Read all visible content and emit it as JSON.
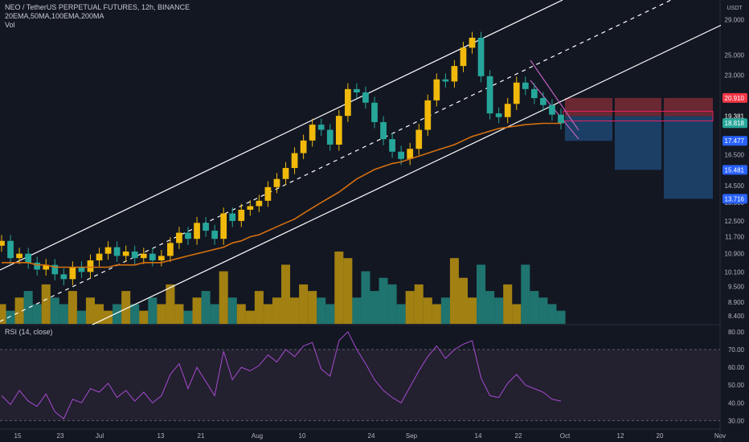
{
  "header": {
    "symbol_line": "NEO / TetherUS PERPETUAL FUTURES, 12h, BINANCE",
    "indicators_line": "20EMA,50MA,100EMA,200MA",
    "volume_label": "Vol"
  },
  "rsi_label": "RSI (14, close)",
  "colors": {
    "background": "#131722",
    "bull": "#f0b90b",
    "bear": "#26a69a",
    "ma": "#d4700f",
    "rsi_line": "#a64bd0",
    "rsi_band": "#23202f",
    "channel": "#ffffff",
    "stop_zone": "#b3363f",
    "target_zone": "#1f4a78"
  },
  "chart_data": [
    {
      "type": "candlestick",
      "title": "NEO / TetherUS PERPETUAL FUTURES, 12h, BINANCE",
      "currency": "USDT",
      "y_scale": "log",
      "ylim": [
        8.1,
        31.5
      ],
      "y_ticks": [
        "8.400",
        "8.900",
        "9.500",
        "10.100",
        "10.900",
        "11.700",
        "12.500",
        "13.500",
        "14.500",
        "16.500",
        "21.000",
        "23.000",
        "25.000",
        "29.000"
      ],
      "x_ticks": [
        "15",
        "23",
        "Jul",
        "13",
        "21",
        "Aug",
        "10",
        "24",
        "Sep",
        "14",
        "22",
        "Oct",
        "12",
        "20",
        "Nov"
      ],
      "price_labels": [
        {
          "label": "20.910",
          "value": 20.91,
          "color": "#f23645"
        },
        {
          "label": "19.381",
          "value": 19.381,
          "color": "#131722"
        },
        {
          "label": "18.818",
          "value": 18.818,
          "color": "#26a69a"
        },
        {
          "label": "17.477",
          "value": 17.477,
          "color": "#2962ff"
        },
        {
          "label": "15.481",
          "value": 15.481,
          "color": "#2962ff"
        },
        {
          "label": "13.716",
          "value": 13.716,
          "color": "#2962ff"
        }
      ],
      "series": [
        {
          "name": "Close",
          "values": [
            11.5,
            10.7,
            10.9,
            10.5,
            10.2,
            10.4,
            10.0,
            9.8,
            10.3,
            10.1,
            10.6,
            10.9,
            11.2,
            10.8,
            11.0,
            10.7,
            10.9,
            10.6,
            10.8,
            11.4,
            11.9,
            11.6,
            12.4,
            12.0,
            11.6,
            12.9,
            12.5,
            13.1,
            13.3,
            13.6,
            14.4,
            14.9,
            15.6,
            16.6,
            17.5,
            18.7,
            18.3,
            17.2,
            19.4,
            21.7,
            21.4,
            20.5,
            18.9,
            17.6,
            16.7,
            16.2,
            16.9,
            18.3,
            20.7,
            22.6,
            22.4,
            23.9,
            25.8,
            26.9,
            22.9,
            19.6,
            19.3,
            20.4,
            22.3,
            21.7,
            20.9,
            20.3,
            19.5,
            18.8
          ]
        },
        {
          "name": "MA",
          "values": [
            10.5,
            10.5,
            10.5,
            10.5,
            10.4,
            10.4,
            10.3,
            10.3,
            10.3,
            10.3,
            10.3,
            10.3,
            10.3,
            10.4,
            10.4,
            10.4,
            10.5,
            10.5,
            10.5,
            10.6,
            10.7,
            10.8,
            10.9,
            11.0,
            11.1,
            11.2,
            11.4,
            11.5,
            11.7,
            11.8,
            12.0,
            12.2,
            12.4,
            12.6,
            12.9,
            13.2,
            13.5,
            13.8,
            14.1,
            14.5,
            14.9,
            15.2,
            15.5,
            15.7,
            15.9,
            16.0,
            16.2,
            16.4,
            16.6,
            16.8,
            17.0,
            17.2,
            17.5,
            17.8,
            18.0,
            18.2,
            18.4,
            18.5,
            18.6,
            18.7,
            18.75,
            18.8,
            18.8,
            18.8
          ]
        }
      ],
      "volume": {
        "name": "Vol",
        "values": [
          3,
          2,
          4,
          5,
          3,
          6,
          4,
          3,
          5,
          2,
          4,
          3,
          2,
          3,
          5,
          3,
          2,
          4,
          3,
          6,
          3,
          2,
          4,
          5,
          3,
          8,
          4,
          3,
          2,
          5,
          3,
          4,
          9,
          4,
          6,
          5,
          4,
          3,
          11,
          10,
          4,
          8,
          5,
          7,
          6,
          3,
          5,
          6,
          4,
          3,
          4,
          10,
          7,
          4,
          9,
          5,
          4,
          6,
          3,
          9,
          5,
          4,
          3,
          2
        ]
      },
      "trade_zones": [
        {
          "type": "stop",
          "from": 19.381,
          "to": 20.91
        },
        {
          "type": "target",
          "from": 17.477,
          "to": 19.381
        },
        {
          "type": "target",
          "from": 15.481,
          "to": 19.381
        },
        {
          "type": "target",
          "from": 13.716,
          "to": 19.381
        }
      ]
    },
    {
      "type": "line",
      "title": "RSI (14, close)",
      "ylim": [
        27,
        84
      ],
      "y_ticks": [
        "30.00",
        "40.00",
        "50.00",
        "60.00",
        "70.00",
        "80.00"
      ],
      "bands": [
        30,
        70
      ],
      "series": [
        {
          "name": "RSI (14, close)",
          "values": [
            44,
            39,
            47,
            41,
            38,
            45,
            35,
            31,
            42,
            40,
            48,
            46,
            51,
            43,
            47,
            41,
            46,
            40,
            44,
            56,
            62,
            48,
            60,
            52,
            44,
            69,
            53,
            60,
            58,
            61,
            67,
            63,
            70,
            66,
            72,
            74,
            59,
            55,
            75,
            80,
            70,
            62,
            53,
            47,
            43,
            40,
            49,
            58,
            66,
            72,
            65,
            70,
            73,
            75,
            54,
            44,
            43,
            51,
            56,
            50,
            48,
            46,
            42,
            41
          ]
        }
      ]
    }
  ]
}
